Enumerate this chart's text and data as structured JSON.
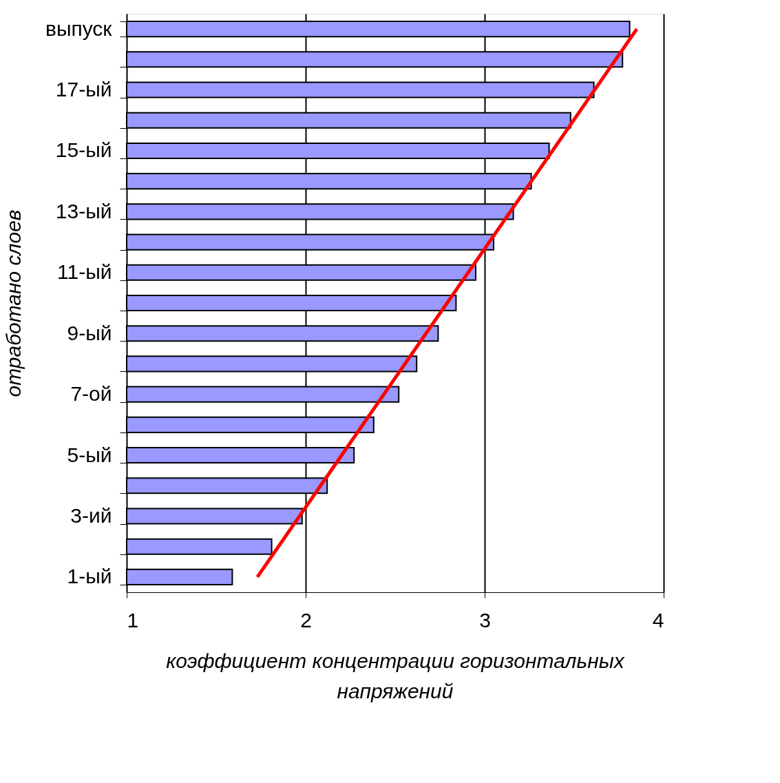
{
  "chart_data": {
    "type": "bar",
    "orientation": "horizontal",
    "xlabel": "коэффициент концентрации горизонтальных напряжений",
    "ylabel": "отработано слоев",
    "categories": [
      "выпуск",
      null,
      "17-ый",
      null,
      "15-ый",
      null,
      "13-ый",
      null,
      "11-ый",
      null,
      "9-ый",
      null,
      "7-ой",
      null,
      "5-ый",
      null,
      "3-ий",
      null,
      "1-ый"
    ],
    "series": [
      {
        "color": "#9999ff",
        "values": [
          3.81,
          3.77,
          3.61,
          3.48,
          3.36,
          3.26,
          3.16,
          3.05,
          2.95,
          2.84,
          2.74,
          2.62,
          2.52,
          2.38,
          2.27,
          2.12,
          1.98,
          1.81,
          1.59
        ]
      },
      {
        "type": "line",
        "color": "#ff0000",
        "values": [
          3.85,
          null,
          null,
          null,
          null,
          null,
          null,
          null,
          null,
          null,
          null,
          null,
          null,
          null,
          null,
          null,
          null,
          null,
          1.73
        ]
      }
    ],
    "xlim": [
      1,
      4
    ],
    "xticks": [
      1,
      2,
      3,
      4
    ],
    "grid": "x"
  }
}
